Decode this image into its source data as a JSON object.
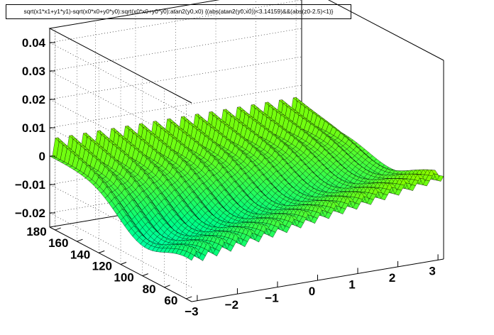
{
  "title": "sqrt(x1*x1+y1*y1)-sqrt(x0*x0+y0*y0):sqrt(x0*x0+y0*y0):atan2(y0,x0) {(abs(atan2(y0,x0))<3.14159)&&(abs(z0-2.5)<1)}",
  "chart_data": {
    "type": "surface",
    "title": "sqrt(x1*x1+y1*y1)-sqrt(x0*x0+y0*y0):sqrt(x0*x0+y0*y0):atan2(y0,x0) {(abs(atan2(y0,x0))<3.14159)&&(abs(z0-2.5)<1)}",
    "x_axis": {
      "ticks": [
        "−3",
        "−2",
        "−1",
        "0",
        "1",
        "2",
        "3"
      ],
      "range": [
        -3.14,
        3.14
      ]
    },
    "y_axis": {
      "ticks": [
        "60",
        "80",
        "100",
        "120",
        "140",
        "160",
        "180"
      ],
      "range": [
        55,
        185
      ]
    },
    "z_axis": {
      "ticks": [
        "−0.02",
        "−0.01",
        "0",
        "0.01",
        "0.02",
        "0.03",
        "0.04"
      ],
      "range": [
        -0.025,
        0.045
      ]
    },
    "ridges": 18,
    "ridge_peak_far": 0.033,
    "ridge_peak_near": 0.012,
    "trough_near": -0.022,
    "palette": [
      "#00ffff",
      "#00ff80",
      "#80ff00",
      "#ffff00",
      "#ff8000"
    ],
    "grid": true
  }
}
